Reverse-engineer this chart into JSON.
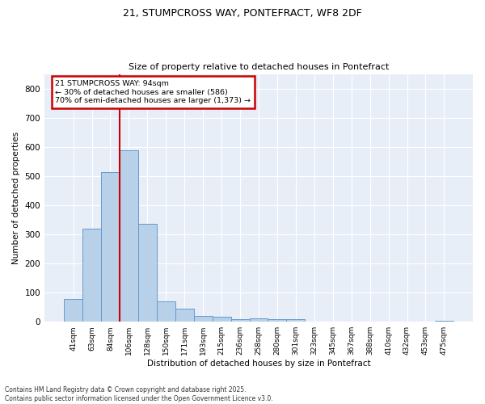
{
  "title_line1": "21, STUMPCROSS WAY, PONTEFRACT, WF8 2DF",
  "title_line2": "Size of property relative to detached houses in Pontefract",
  "xlabel": "Distribution of detached houses by size in Pontefract",
  "ylabel": "Number of detached properties",
  "bar_color": "#b8d0e8",
  "bar_edge_color": "#6699cc",
  "background_color": "#e8eef8",
  "fig_background_color": "#ffffff",
  "grid_color": "#ffffff",
  "categories": [
    "41sqm",
    "63sqm",
    "84sqm",
    "106sqm",
    "128sqm",
    "150sqm",
    "171sqm",
    "193sqm",
    "215sqm",
    "236sqm",
    "258sqm",
    "280sqm",
    "301sqm",
    "323sqm",
    "345sqm",
    "367sqm",
    "388sqm",
    "410sqm",
    "432sqm",
    "453sqm",
    "475sqm"
  ],
  "values": [
    78,
    318,
    513,
    588,
    335,
    70,
    46,
    20,
    17,
    8,
    11,
    10,
    8,
    0,
    0,
    0,
    0,
    0,
    0,
    0,
    4
  ],
  "ylim": [
    0,
    850
  ],
  "yticks": [
    0,
    100,
    200,
    300,
    400,
    500,
    600,
    700,
    800
  ],
  "property_line_x": 2.5,
  "annotation_text": "21 STUMPCROSS WAY: 94sqm\n← 30% of detached houses are smaller (586)\n70% of semi-detached houses are larger (1,373) →",
  "annotation_box_color": "#ffffff",
  "annotation_border_color": "#cc0000",
  "property_line_color": "#cc0000",
  "footer_line1": "Contains HM Land Registry data © Crown copyright and database right 2025.",
  "footer_line2": "Contains public sector information licensed under the Open Government Licence v3.0."
}
